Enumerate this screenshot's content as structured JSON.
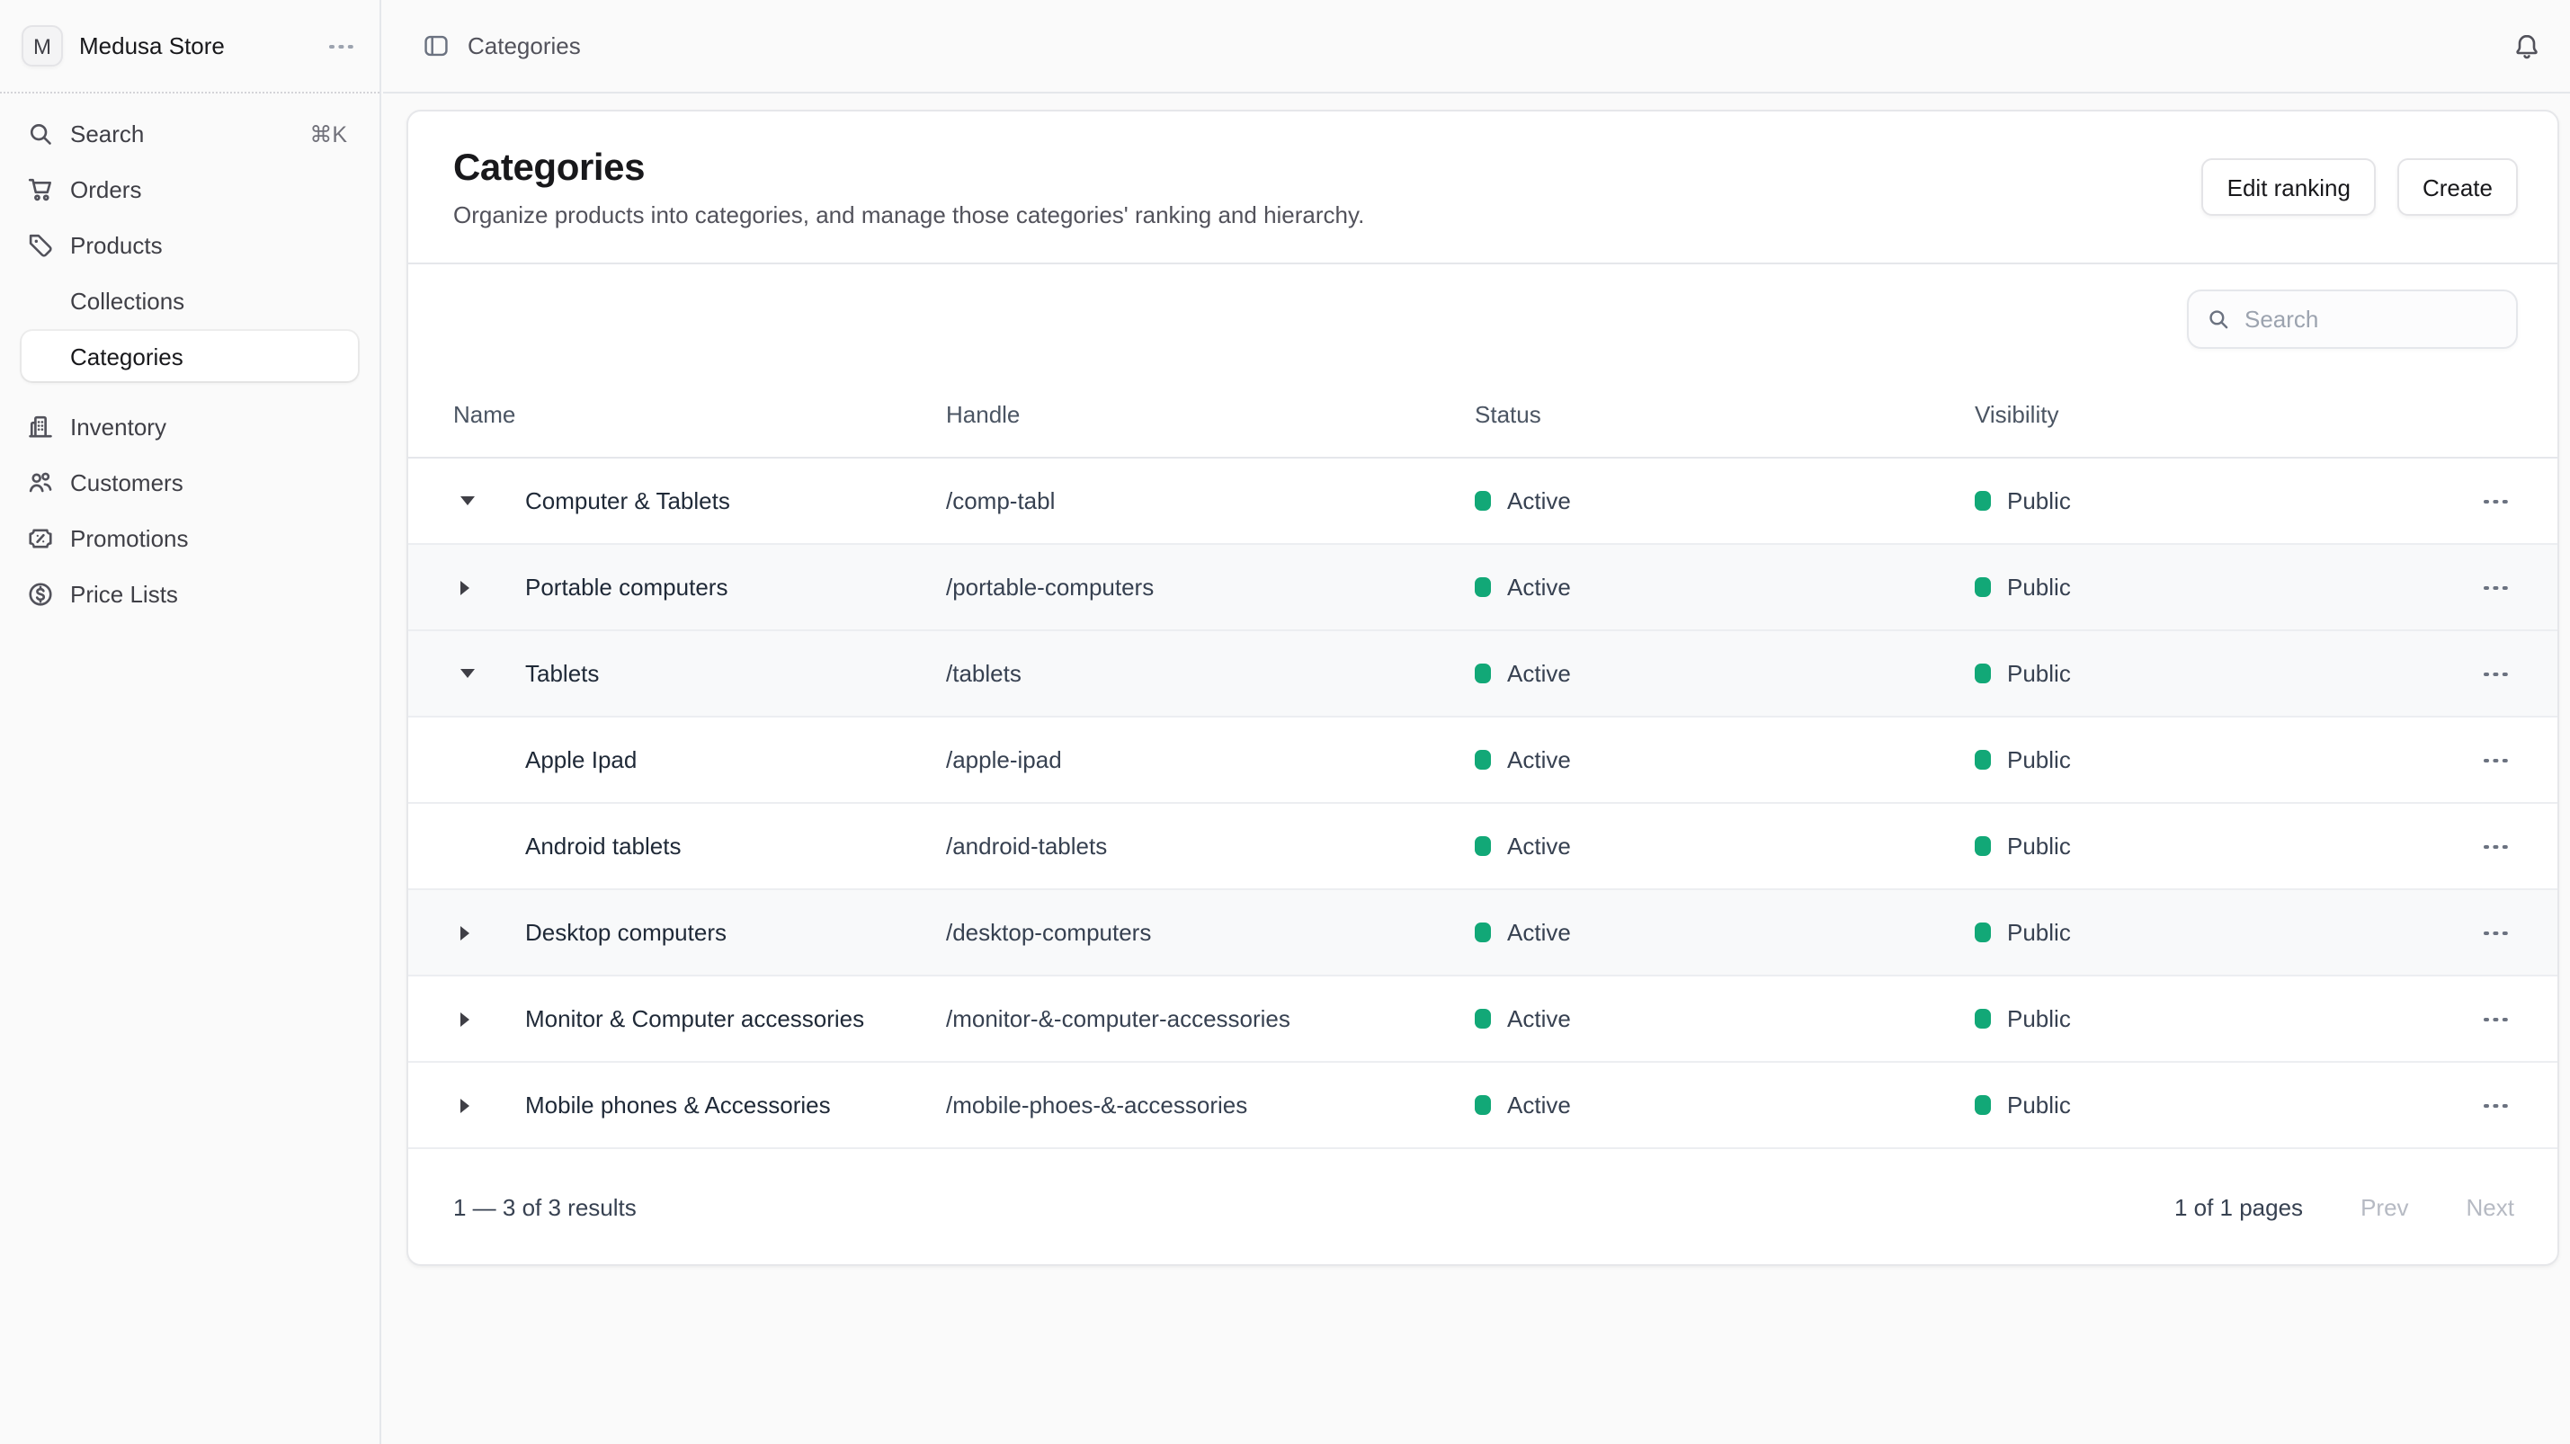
{
  "colors": {
    "status_green": "#12a877"
  },
  "sidebar": {
    "store": {
      "initial": "M",
      "name": "Medusa Store",
      "menu_icon": "ellipsis-icon"
    },
    "search": {
      "label": "Search",
      "shortcut": "⌘K",
      "icon": "search-icon"
    },
    "items": [
      {
        "label": "Orders",
        "icon": "cart-icon",
        "child": false,
        "active": false,
        "group_gap": false
      },
      {
        "label": "Products",
        "icon": "tag-icon",
        "child": false,
        "active": false,
        "group_gap": false
      },
      {
        "label": "Collections",
        "icon": null,
        "child": true,
        "active": false,
        "group_gap": false
      },
      {
        "label": "Categories",
        "icon": null,
        "child": true,
        "active": true,
        "group_gap": false
      },
      {
        "label": "Inventory",
        "icon": "building-icon",
        "child": false,
        "active": false,
        "group_gap": true
      },
      {
        "label": "Customers",
        "icon": "users-icon",
        "child": false,
        "active": false,
        "group_gap": false
      },
      {
        "label": "Promotions",
        "icon": "ticket-icon",
        "child": false,
        "active": false,
        "group_gap": false
      },
      {
        "label": "Price Lists",
        "icon": "dollar-icon",
        "child": false,
        "active": false,
        "group_gap": false
      }
    ]
  },
  "topbar": {
    "breadcrumb": "Categories",
    "panel_icon": "sidebar-toggle-icon",
    "bell_icon": "bell-icon"
  },
  "page": {
    "title": "Categories",
    "description": "Organize products into categories, and manage those categories' ranking and hierarchy.",
    "actions": {
      "edit_ranking": "Edit ranking",
      "create": "Create"
    }
  },
  "toolbar": {
    "search_placeholder": "Search"
  },
  "table": {
    "columns": [
      "Name",
      "Handle",
      "Status",
      "Visibility"
    ],
    "rows": [
      {
        "name": "Computer & Tablets",
        "handle": "/comp-tabl",
        "status": "Active",
        "visibility": "Public",
        "expand": "expanded",
        "shaded": false
      },
      {
        "name": "Portable computers",
        "handle": "/portable-computers",
        "status": "Active",
        "visibility": "Public",
        "expand": "collapsed",
        "shaded": true
      },
      {
        "name": "Tablets",
        "handle": "/tablets",
        "status": "Active",
        "visibility": "Public",
        "expand": "expanded",
        "shaded": true
      },
      {
        "name": "Apple Ipad",
        "handle": "/apple-ipad",
        "status": "Active",
        "visibility": "Public",
        "expand": "none",
        "shaded": false
      },
      {
        "name": "Android tablets",
        "handle": "/android-tablets",
        "status": "Active",
        "visibility": "Public",
        "expand": "none",
        "shaded": false
      },
      {
        "name": "Desktop computers",
        "handle": "/desktop-computers",
        "status": "Active",
        "visibility": "Public",
        "expand": "collapsed",
        "shaded": true
      },
      {
        "name": "Monitor & Computer accessories",
        "handle": "/monitor-&-computer-accessories",
        "status": "Active",
        "visibility": "Public",
        "expand": "collapsed",
        "shaded": false
      },
      {
        "name": "Mobile phones & Accessories",
        "handle": "/mobile-phoes-&-accessories",
        "status": "Active",
        "visibility": "Public",
        "expand": "collapsed",
        "shaded": false
      }
    ]
  },
  "footer": {
    "results": "1 — 3 of 3 results",
    "pages": "1 of 1 pages",
    "prev": "Prev",
    "next": "Next"
  }
}
